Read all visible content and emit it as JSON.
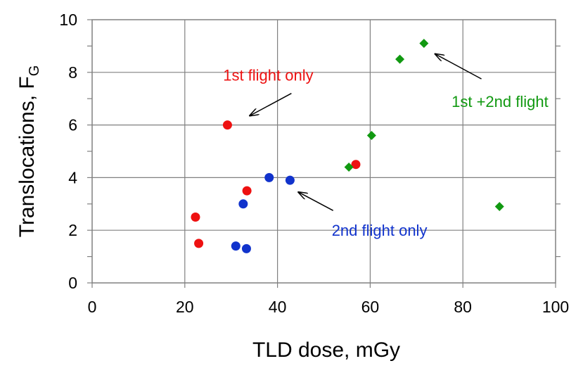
{
  "chart_data": {
    "type": "scatter",
    "xlabel": "TLD dose, mGy",
    "ylabel_main": "Translocations, F",
    "ylabel_sub": "G",
    "xlim": [
      0,
      100
    ],
    "ylim": [
      0,
      10
    ],
    "x_ticks": [
      "0",
      "20",
      "40",
      "60",
      "80",
      "100"
    ],
    "y_ticks": [
      "0",
      "2",
      "4",
      "6",
      "8",
      "10"
    ],
    "grid": true,
    "legend": "none",
    "series": [
      {
        "color": "#ee1111",
        "marker": "circle",
        "points": [
          {
            "x": 22.3,
            "y": 2.5
          },
          {
            "x": 23.0,
            "y": 1.5
          },
          {
            "x": 29.2,
            "y": 6.0
          },
          {
            "x": 33.4,
            "y": 3.5
          },
          {
            "x": 56.9,
            "y": 4.5
          }
        ]
      },
      {
        "color": "#1133cc",
        "marker": "circle",
        "points": [
          {
            "x": 31.0,
            "y": 1.4
          },
          {
            "x": 32.6,
            "y": 3.0
          },
          {
            "x": 33.3,
            "y": 1.3
          },
          {
            "x": 38.2,
            "y": 4.0
          },
          {
            "x": 42.7,
            "y": 3.9
          }
        ]
      },
      {
        "color": "#119911",
        "marker": "diamond",
        "points": [
          {
            "x": 55.4,
            "y": 4.4
          },
          {
            "x": 60.3,
            "y": 5.6
          },
          {
            "x": 66.4,
            "y": 8.5
          },
          {
            "x": 71.6,
            "y": 9.1
          },
          {
            "x": 87.9,
            "y": 2.9
          }
        ]
      }
    ],
    "annotations": [
      {
        "text": "1st flight only",
        "color": "#ee1111",
        "tx": 38,
        "ty": 7.9,
        "from": [
          43.0,
          7.2
        ],
        "to": [
          34.0,
          6.35
        ]
      },
      {
        "text": "2nd flight only",
        "color": "#1133cc",
        "tx": 62,
        "ty": 2.0,
        "from": [
          52.0,
          2.75
        ],
        "to": [
          44.5,
          3.45
        ]
      },
      {
        "text": "1st +2nd flight",
        "color": "#119911",
        "tx": 88,
        "ty": 6.9,
        "from": [
          84.0,
          7.75
        ],
        "to": [
          74.0,
          8.7
        ]
      }
    ]
  }
}
